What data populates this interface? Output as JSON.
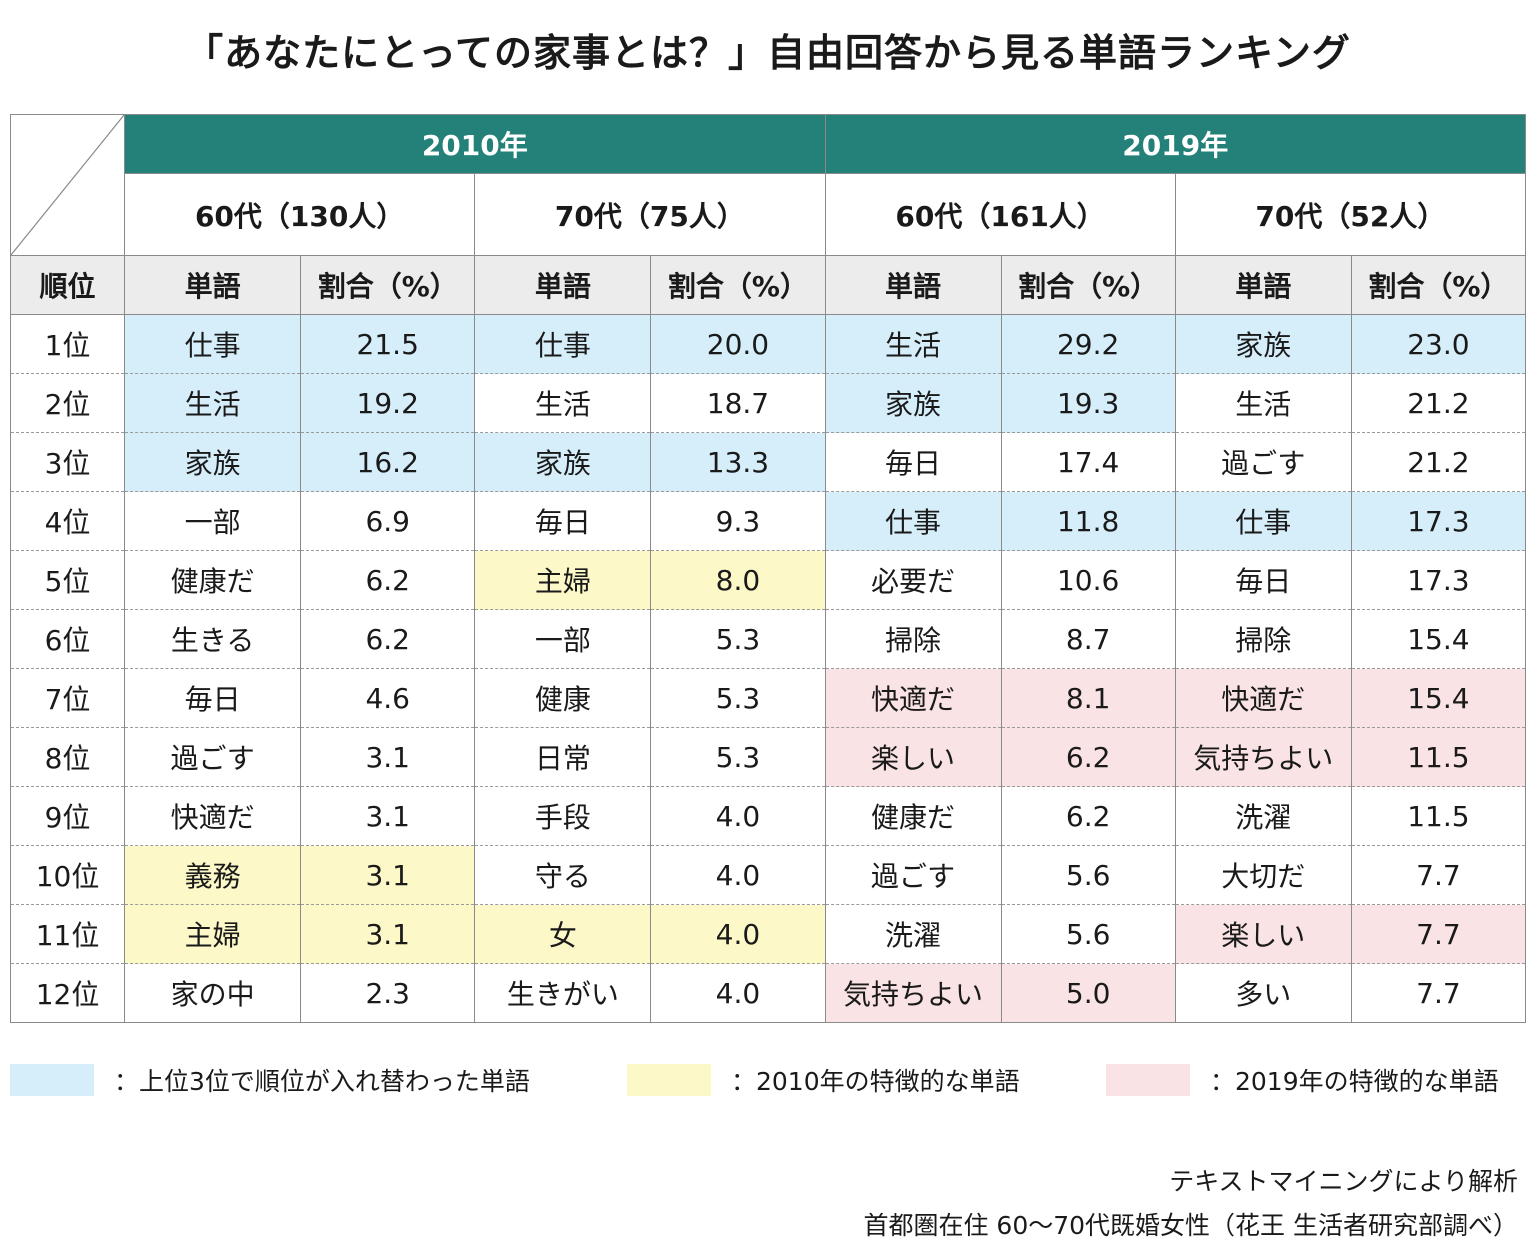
{
  "title": "「あなたにとっての家事とは？」自由回答から見る単語ランキング",
  "years": [
    "2010年",
    "2019年"
  ],
  "groups": [
    "60代（130人）",
    "70代（75人）",
    "60代（161人）",
    "70代（52人）"
  ],
  "col_headers": {
    "rank": "順位",
    "word": "単語",
    "pct": "割合（%）"
  },
  "colors": {
    "header_green": "#23817a",
    "blue": "#d5eefa",
    "yellow": "#fcf8c8",
    "pink": "#fae3e4"
  },
  "rows": [
    {
      "rank": "1位",
      "cells": [
        {
          "w": "仕事",
          "p": "21.5",
          "hl": "blue"
        },
        {
          "w": "仕事",
          "p": "20.0",
          "hl": "blue"
        },
        {
          "w": "生活",
          "p": "29.2",
          "hl": "blue"
        },
        {
          "w": "家族",
          "p": "23.0",
          "hl": "blue"
        }
      ]
    },
    {
      "rank": "2位",
      "cells": [
        {
          "w": "生活",
          "p": "19.2",
          "hl": "blue"
        },
        {
          "w": "生活",
          "p": "18.7",
          "hl": ""
        },
        {
          "w": "家族",
          "p": "19.3",
          "hl": "blue"
        },
        {
          "w": "生活",
          "p": "21.2",
          "hl": ""
        }
      ]
    },
    {
      "rank": "3位",
      "cells": [
        {
          "w": "家族",
          "p": "16.2",
          "hl": "blue"
        },
        {
          "w": "家族",
          "p": "13.3",
          "hl": "blue"
        },
        {
          "w": "毎日",
          "p": "17.4",
          "hl": ""
        },
        {
          "w": "過ごす",
          "p": "21.2",
          "hl": ""
        }
      ]
    },
    {
      "rank": "4位",
      "cells": [
        {
          "w": "一部",
          "p": "6.9",
          "hl": ""
        },
        {
          "w": "毎日",
          "p": "9.3",
          "hl": ""
        },
        {
          "w": "仕事",
          "p": "11.8",
          "hl": "blue"
        },
        {
          "w": "仕事",
          "p": "17.3",
          "hl": "blue"
        }
      ]
    },
    {
      "rank": "5位",
      "cells": [
        {
          "w": "健康だ",
          "p": "6.2",
          "hl": ""
        },
        {
          "w": "主婦",
          "p": "8.0",
          "hl": "yellow"
        },
        {
          "w": "必要だ",
          "p": "10.6",
          "hl": ""
        },
        {
          "w": "毎日",
          "p": "17.3",
          "hl": ""
        }
      ]
    },
    {
      "rank": "6位",
      "cells": [
        {
          "w": "生きる",
          "p": "6.2",
          "hl": ""
        },
        {
          "w": "一部",
          "p": "5.3",
          "hl": ""
        },
        {
          "w": "掃除",
          "p": "8.7",
          "hl": ""
        },
        {
          "w": "掃除",
          "p": "15.4",
          "hl": ""
        }
      ]
    },
    {
      "rank": "7位",
      "cells": [
        {
          "w": "毎日",
          "p": "4.6",
          "hl": ""
        },
        {
          "w": "健康",
          "p": "5.3",
          "hl": ""
        },
        {
          "w": "快適だ",
          "p": "8.1",
          "hl": "pink"
        },
        {
          "w": "快適だ",
          "p": "15.4",
          "hl": "pink"
        }
      ]
    },
    {
      "rank": "8位",
      "cells": [
        {
          "w": "過ごす",
          "p": "3.1",
          "hl": ""
        },
        {
          "w": "日常",
          "p": "5.3",
          "hl": ""
        },
        {
          "w": "楽しい",
          "p": "6.2",
          "hl": "pink"
        },
        {
          "w": "気持ちよい",
          "p": "11.5",
          "hl": "pink"
        }
      ]
    },
    {
      "rank": "9位",
      "cells": [
        {
          "w": "快適だ",
          "p": "3.1",
          "hl": ""
        },
        {
          "w": "手段",
          "p": "4.0",
          "hl": ""
        },
        {
          "w": "健康だ",
          "p": "6.2",
          "hl": ""
        },
        {
          "w": "洗濯",
          "p": "11.5",
          "hl": ""
        }
      ]
    },
    {
      "rank": "10位",
      "cells": [
        {
          "w": "義務",
          "p": "3.1",
          "hl": "yellow"
        },
        {
          "w": "守る",
          "p": "4.0",
          "hl": ""
        },
        {
          "w": "過ごす",
          "p": "5.6",
          "hl": ""
        },
        {
          "w": "大切だ",
          "p": "7.7",
          "hl": ""
        }
      ]
    },
    {
      "rank": "11位",
      "cells": [
        {
          "w": "主婦",
          "p": "3.1",
          "hl": "yellow"
        },
        {
          "w": "女",
          "p": "4.0",
          "hl": "yellow"
        },
        {
          "w": "洗濯",
          "p": "5.6",
          "hl": ""
        },
        {
          "w": "楽しい",
          "p": "7.7",
          "hl": "pink"
        }
      ]
    },
    {
      "rank": "12位",
      "cells": [
        {
          "w": "家の中",
          "p": "2.3",
          "hl": ""
        },
        {
          "w": "生きがい",
          "p": "4.0",
          "hl": ""
        },
        {
          "w": "気持ちよい",
          "p": "5.0",
          "hl": "pink"
        },
        {
          "w": "多い",
          "p": "7.7",
          "hl": ""
        }
      ]
    }
  ],
  "legend": [
    {
      "key": "blue",
      "text": "：上位3位で順位が入れ替わった単語"
    },
    {
      "key": "yellow",
      "text": "：2010年の特徴的な単語"
    },
    {
      "key": "pink",
      "text": "：2019年の特徴的な単語"
    }
  ],
  "footer": {
    "line1": "テキストマイニングにより解析",
    "line2": "首都圏在住 60～70代既婚女性（花王 生活者研究部調べ）"
  }
}
